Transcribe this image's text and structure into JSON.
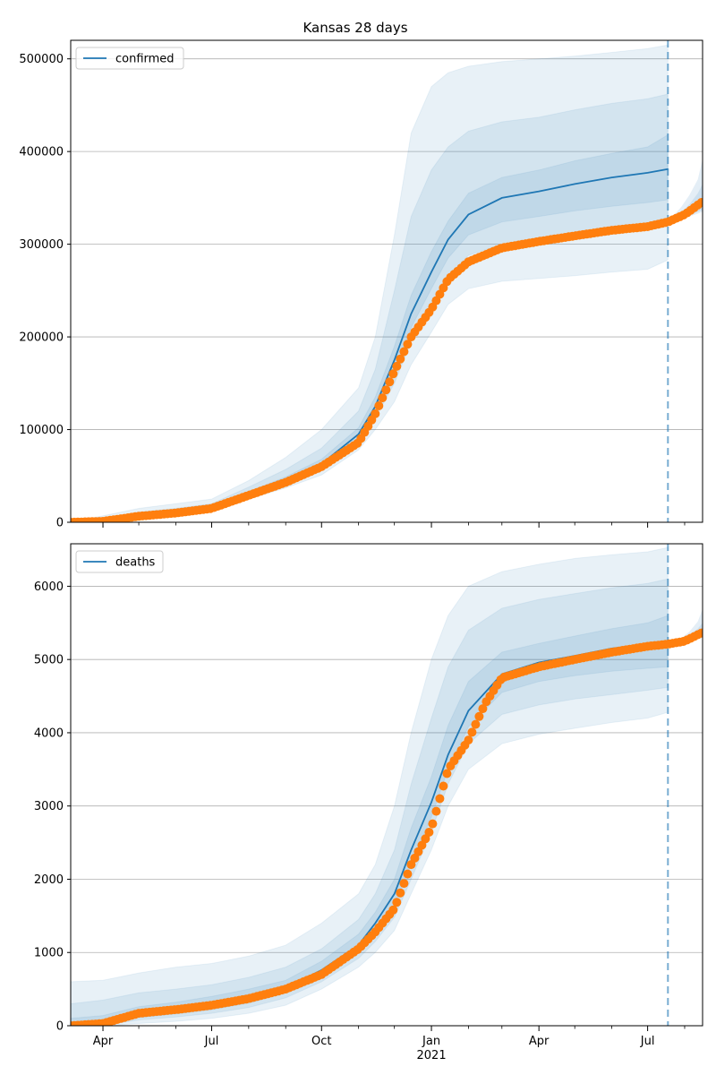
{
  "title": "Kansas 28 days",
  "colors": {
    "model": "#1f77b4",
    "observed": "#ff7f0e",
    "grid": "#b0b0b0"
  },
  "x_axis": {
    "tick_labels": [
      {
        "date": "2020-04-01",
        "label": "Apr",
        "sub": ""
      },
      {
        "date": "2020-07-01",
        "label": "Jul",
        "sub": ""
      },
      {
        "date": "2020-10-01",
        "label": "Oct",
        "sub": ""
      },
      {
        "date": "2021-01-01",
        "label": "Jan",
        "sub": "2021"
      },
      {
        "date": "2021-04-01",
        "label": "Apr",
        "sub": ""
      },
      {
        "date": "2021-07-01",
        "label": "Jul",
        "sub": ""
      }
    ],
    "minor_ticks": [
      "2020-05-01",
      "2020-06-01",
      "2020-08-01",
      "2020-09-01",
      "2020-11-01",
      "2020-12-01",
      "2021-02-01",
      "2021-03-01",
      "2021-05-01",
      "2021-06-01",
      "2021-08-01"
    ],
    "range": [
      "2020-03-05",
      "2021-08-16"
    ],
    "forecast_date": "2021-07-18"
  },
  "chart_data": [
    {
      "type": "line",
      "legend": "confirmed",
      "legend_position": "top-left",
      "grid": "horizontal",
      "ylim": [
        0,
        520000
      ],
      "yticks": [
        0,
        100000,
        200000,
        300000,
        400000,
        500000
      ],
      "model": [
        {
          "date": "2020-03-05",
          "y": 0
        },
        {
          "date": "2020-04-01",
          "y": 2000
        },
        {
          "date": "2020-05-01",
          "y": 7000
        },
        {
          "date": "2020-06-01",
          "y": 10000
        },
        {
          "date": "2020-07-01",
          "y": 15000
        },
        {
          "date": "2020-08-01",
          "y": 30000
        },
        {
          "date": "2020-09-01",
          "y": 45000
        },
        {
          "date": "2020-10-01",
          "y": 63000
        },
        {
          "date": "2020-11-01",
          "y": 95000
        },
        {
          "date": "2020-11-15",
          "y": 125000
        },
        {
          "date": "2020-12-01",
          "y": 175000
        },
        {
          "date": "2020-12-15",
          "y": 225000
        },
        {
          "date": "2021-01-01",
          "y": 270000
        },
        {
          "date": "2021-01-15",
          "y": 305000
        },
        {
          "date": "2021-02-01",
          "y": 332000
        },
        {
          "date": "2021-03-01",
          "y": 350000
        },
        {
          "date": "2021-04-01",
          "y": 357000
        },
        {
          "date": "2021-05-01",
          "y": 365000
        },
        {
          "date": "2021-06-01",
          "y": 372000
        },
        {
          "date": "2021-07-01",
          "y": 377000
        },
        {
          "date": "2021-07-18",
          "y": 381000
        }
      ],
      "bands": [
        {
          "opacity": 0.1,
          "lower": [
            0,
            1000,
            5000,
            8000,
            12000,
            25000,
            37000,
            51000,
            78000,
            100000,
            130000,
            170000,
            205000,
            235000,
            252000,
            260000,
            263000,
            266000,
            270000,
            273000,
            283000
          ],
          "upper": [
            0,
            7000,
            15000,
            20000,
            25000,
            45000,
            70000,
            100000,
            145000,
            200000,
            310000,
            420000,
            470000,
            485000,
            492000,
            497000,
            500000,
            503000,
            507000,
            511000,
            515000
          ]
        },
        {
          "opacity": 0.1,
          "lower": [
            0,
            1500,
            6000,
            9000,
            13000,
            27000,
            40000,
            56000,
            85000,
            112000,
            150000,
            195000,
            235000,
            265000,
            288000,
            300000,
            305000,
            310000,
            315000,
            318000,
            324000
          ],
          "upper": [
            0,
            4000,
            11000,
            15000,
            20000,
            38000,
            57000,
            80000,
            120000,
            165000,
            250000,
            330000,
            380000,
            405000,
            422000,
            432000,
            437000,
            445000,
            452000,
            457000,
            462000
          ]
        },
        {
          "opacity": 0.1,
          "lower": [
            0,
            1800,
            6500,
            9500,
            14000,
            28000,
            42000,
            60000,
            90000,
            118000,
            165000,
            210000,
            252000,
            285000,
            310000,
            324000,
            330000,
            336000,
            341000,
            345000,
            348000
          ],
          "upper": [
            0,
            3000,
            8500,
            12000,
            17000,
            33000,
            49000,
            68000,
            102000,
            135000,
            190000,
            245000,
            292000,
            325000,
            355000,
            372000,
            380000,
            390000,
            398000,
            405000,
            418000
          ]
        }
      ],
      "model_after": [
        {
          "date": "2021-07-22",
          "y": 324000
        },
        {
          "date": "2021-07-29",
          "y": 330000
        },
        {
          "date": "2021-08-05",
          "y": 335000
        },
        {
          "date": "2021-08-12",
          "y": 341000
        },
        {
          "date": "2021-08-16",
          "y": 344000
        }
      ],
      "band_after": [
        {
          "lower": [
            322000,
            326000,
            330000,
            333000,
            335000
          ],
          "upper": [
            330000,
            340000,
            353000,
            370000,
            392000
          ]
        },
        {
          "lower": [
            323000,
            327000,
            331000,
            335000,
            337000
          ],
          "upper": [
            327000,
            334000,
            343000,
            355000,
            365000
          ]
        }
      ],
      "observed": [
        {
          "date": "2020-03-05",
          "y": 0
        },
        {
          "date": "2020-04-01",
          "y": 1000
        },
        {
          "date": "2020-05-01",
          "y": 6500
        },
        {
          "date": "2020-06-01",
          "y": 10000
        },
        {
          "date": "2020-07-01",
          "y": 15000
        },
        {
          "date": "2020-08-01",
          "y": 29000
        },
        {
          "date": "2020-09-01",
          "y": 43000
        },
        {
          "date": "2020-10-01",
          "y": 60000
        },
        {
          "date": "2020-11-01",
          "y": 86000
        },
        {
          "date": "2020-11-15",
          "y": 117000
        },
        {
          "date": "2020-12-01",
          "y": 163000
        },
        {
          "date": "2020-12-15",
          "y": 200000
        },
        {
          "date": "2021-01-01",
          "y": 230000
        },
        {
          "date": "2021-01-15",
          "y": 262000
        },
        {
          "date": "2021-02-01",
          "y": 281000
        },
        {
          "date": "2021-03-01",
          "y": 296000
        },
        {
          "date": "2021-04-01",
          "y": 303000
        },
        {
          "date": "2021-05-01",
          "y": 309000
        },
        {
          "date": "2021-06-01",
          "y": 315000
        },
        {
          "date": "2021-07-01",
          "y": 319000
        },
        {
          "date": "2021-07-18",
          "y": 324000
        },
        {
          "date": "2021-08-01",
          "y": 332000
        },
        {
          "date": "2021-08-16",
          "y": 346000
        }
      ]
    },
    {
      "type": "line",
      "legend": "deaths",
      "legend_position": "top-left",
      "grid": "horizontal",
      "ylim": [
        0,
        6580
      ],
      "yticks": [
        0,
        1000,
        2000,
        3000,
        4000,
        5000,
        6000
      ],
      "model": [
        {
          "date": "2020-03-05",
          "y": 0
        },
        {
          "date": "2020-04-01",
          "y": 30
        },
        {
          "date": "2020-05-01",
          "y": 170
        },
        {
          "date": "2020-06-01",
          "y": 220
        },
        {
          "date": "2020-07-01",
          "y": 290
        },
        {
          "date": "2020-08-01",
          "y": 380
        },
        {
          "date": "2020-09-01",
          "y": 520
        },
        {
          "date": "2020-10-01",
          "y": 760
        },
        {
          "date": "2020-11-01",
          "y": 1100
        },
        {
          "date": "2020-11-15",
          "y": 1400
        },
        {
          "date": "2020-12-01",
          "y": 1800
        },
        {
          "date": "2020-12-15",
          "y": 2400
        },
        {
          "date": "2021-01-01",
          "y": 3050
        },
        {
          "date": "2021-01-15",
          "y": 3700
        },
        {
          "date": "2021-02-01",
          "y": 4300
        },
        {
          "date": "2021-03-01",
          "y": 4800
        },
        {
          "date": "2021-04-01",
          "y": 4960
        },
        {
          "date": "2021-05-01",
          "y": 5050
        },
        {
          "date": "2021-06-01",
          "y": 5150
        },
        {
          "date": "2021-07-01",
          "y": 5210
        },
        {
          "date": "2021-07-18",
          "y": 5250
        }
      ],
      "bands": [
        {
          "opacity": 0.1,
          "lower": [
            0,
            0,
            30,
            60,
            100,
            170,
            280,
            500,
            800,
            1000,
            1300,
            1800,
            2400,
            3000,
            3500,
            3850,
            3980,
            4060,
            4140,
            4200,
            4280
          ],
          "upper": [
            600,
            620,
            720,
            800,
            850,
            950,
            1100,
            1400,
            1800,
            2200,
            3000,
            4000,
            5000,
            5600,
            6000,
            6200,
            6300,
            6380,
            6430,
            6470,
            6530
          ]
        },
        {
          "opacity": 0.1,
          "lower": [
            0,
            0,
            80,
            120,
            170,
            250,
            380,
            600,
            920,
            1150,
            1480,
            2000,
            2650,
            3300,
            3850,
            4250,
            4380,
            4460,
            4520,
            4580,
            4620
          ],
          "upper": [
            300,
            350,
            450,
            500,
            560,
            660,
            800,
            1050,
            1450,
            1800,
            2400,
            3300,
            4200,
            4900,
            5400,
            5700,
            5820,
            5900,
            5980,
            6040,
            6100
          ]
        },
        {
          "opacity": 0.1,
          "lower": [
            0,
            10,
            110,
            160,
            220,
            310,
            450,
            680,
            1000,
            1270,
            1640,
            2200,
            2850,
            3500,
            4080,
            4550,
            4700,
            4780,
            4840,
            4880,
            4900
          ],
          "upper": [
            100,
            140,
            260,
            320,
            400,
            500,
            620,
            880,
            1250,
            1550,
            2000,
            2700,
            3400,
            4100,
            4700,
            5100,
            5220,
            5320,
            5420,
            5500,
            5600
          ]
        }
      ],
      "model_after": [
        {
          "date": "2021-07-22",
          "y": 5220
        },
        {
          "date": "2021-07-29",
          "y": 5250
        },
        {
          "date": "2021-08-05",
          "y": 5290
        },
        {
          "date": "2021-08-12",
          "y": 5350
        },
        {
          "date": "2021-08-16",
          "y": 5390
        }
      ],
      "band_after": [
        {
          "lower": [
            5200,
            5230,
            5260,
            5280,
            5300
          ],
          "upper": [
            5240,
            5290,
            5380,
            5520,
            5690
          ]
        },
        {
          "lower": [
            5210,
            5240,
            5270,
            5300,
            5320
          ],
          "upper": [
            5230,
            5270,
            5330,
            5420,
            5500
          ]
        }
      ],
      "observed": [
        {
          "date": "2020-03-05",
          "y": 0
        },
        {
          "date": "2020-04-01",
          "y": 30
        },
        {
          "date": "2020-05-01",
          "y": 170
        },
        {
          "date": "2020-06-01",
          "y": 220
        },
        {
          "date": "2020-07-01",
          "y": 280
        },
        {
          "date": "2020-08-01",
          "y": 370
        },
        {
          "date": "2020-09-01",
          "y": 500
        },
        {
          "date": "2020-10-01",
          "y": 700
        },
        {
          "date": "2020-11-01",
          "y": 1050
        },
        {
          "date": "2020-11-15",
          "y": 1280
        },
        {
          "date": "2020-12-01",
          "y": 1600
        },
        {
          "date": "2020-12-15",
          "y": 2200
        },
        {
          "date": "2021-01-01",
          "y": 2700
        },
        {
          "date": "2021-01-15",
          "y": 3500
        },
        {
          "date": "2021-02-01",
          "y": 3900
        },
        {
          "date": "2021-02-15",
          "y": 4400
        },
        {
          "date": "2021-03-01",
          "y": 4750
        },
        {
          "date": "2021-04-01",
          "y": 4900
        },
        {
          "date": "2021-05-01",
          "y": 5000
        },
        {
          "date": "2021-06-01",
          "y": 5100
        },
        {
          "date": "2021-07-01",
          "y": 5180
        },
        {
          "date": "2021-07-18",
          "y": 5210
        },
        {
          "date": "2021-08-01",
          "y": 5250
        },
        {
          "date": "2021-08-16",
          "y": 5370
        }
      ]
    }
  ]
}
